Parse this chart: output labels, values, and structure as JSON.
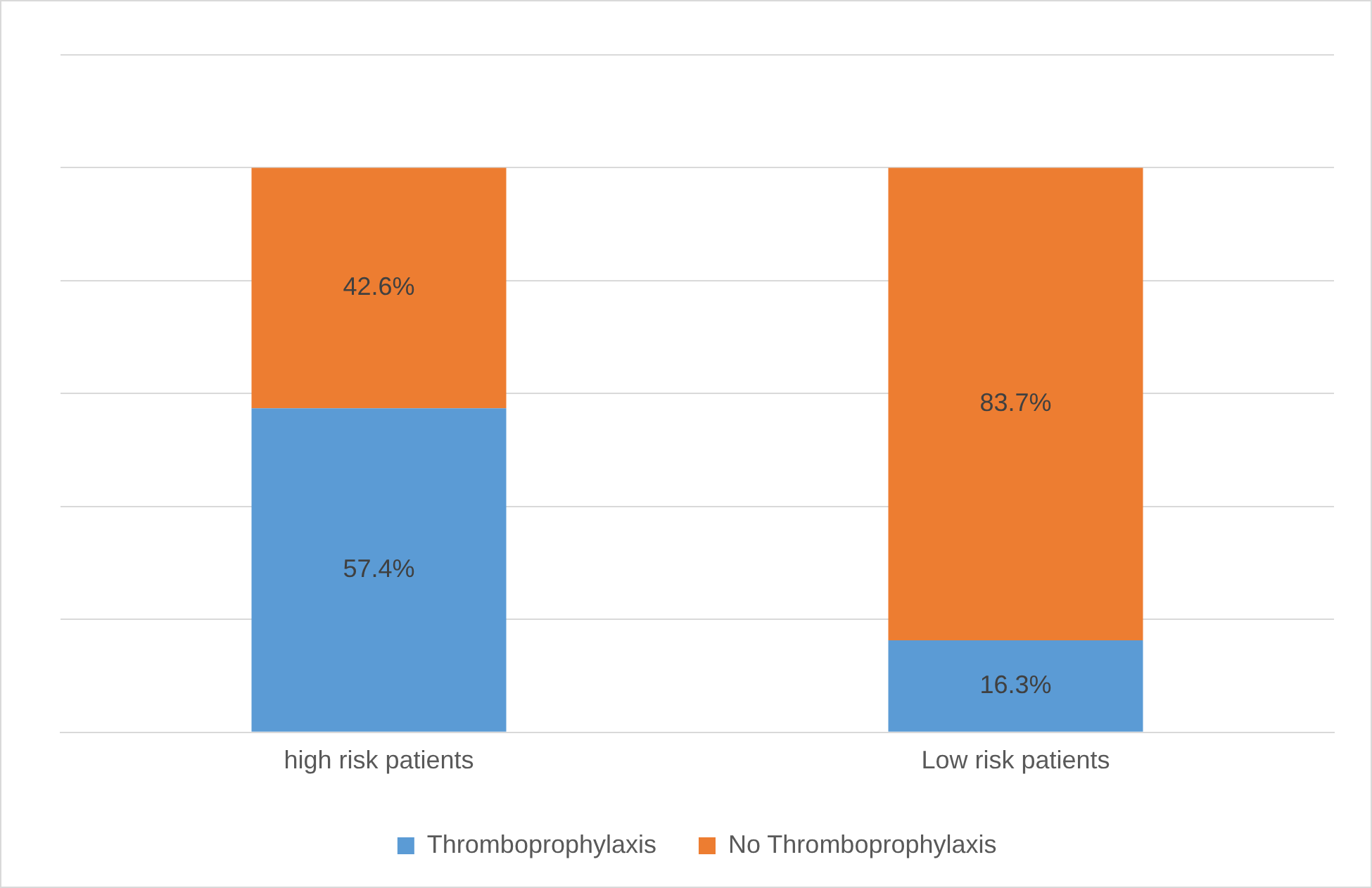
{
  "chart_data": {
    "type": "bar",
    "stacked": true,
    "categories": [
      "high risk patients",
      "Low risk patients"
    ],
    "series": [
      {
        "name": "Thromboprophylaxis",
        "color": "#5b9bd5",
        "values": [
          57.4,
          16.3
        ],
        "value_labels": [
          "57.4%",
          "16.3%"
        ]
      },
      {
        "name": "No Thromboprophylaxis",
        "color": "#ed7d31",
        "values": [
          42.6,
          83.7
        ],
        "value_labels": [
          "42.6%",
          "83.7%"
        ]
      }
    ],
    "ylim": [
      0,
      120
    ],
    "yticks": [
      {
        "value": 0,
        "label": null
      },
      {
        "value": 20,
        "label": null
      },
      {
        "value": 40,
        "label": null
      },
      {
        "value": 60,
        "label": null
      },
      {
        "value": 80,
        "label": null
      },
      {
        "value": 100,
        "label": null
      },
      {
        "value": 120,
        "label": null
      }
    ],
    "tick_labels": "x",
    "grid": "y",
    "legend": "bottom"
  }
}
